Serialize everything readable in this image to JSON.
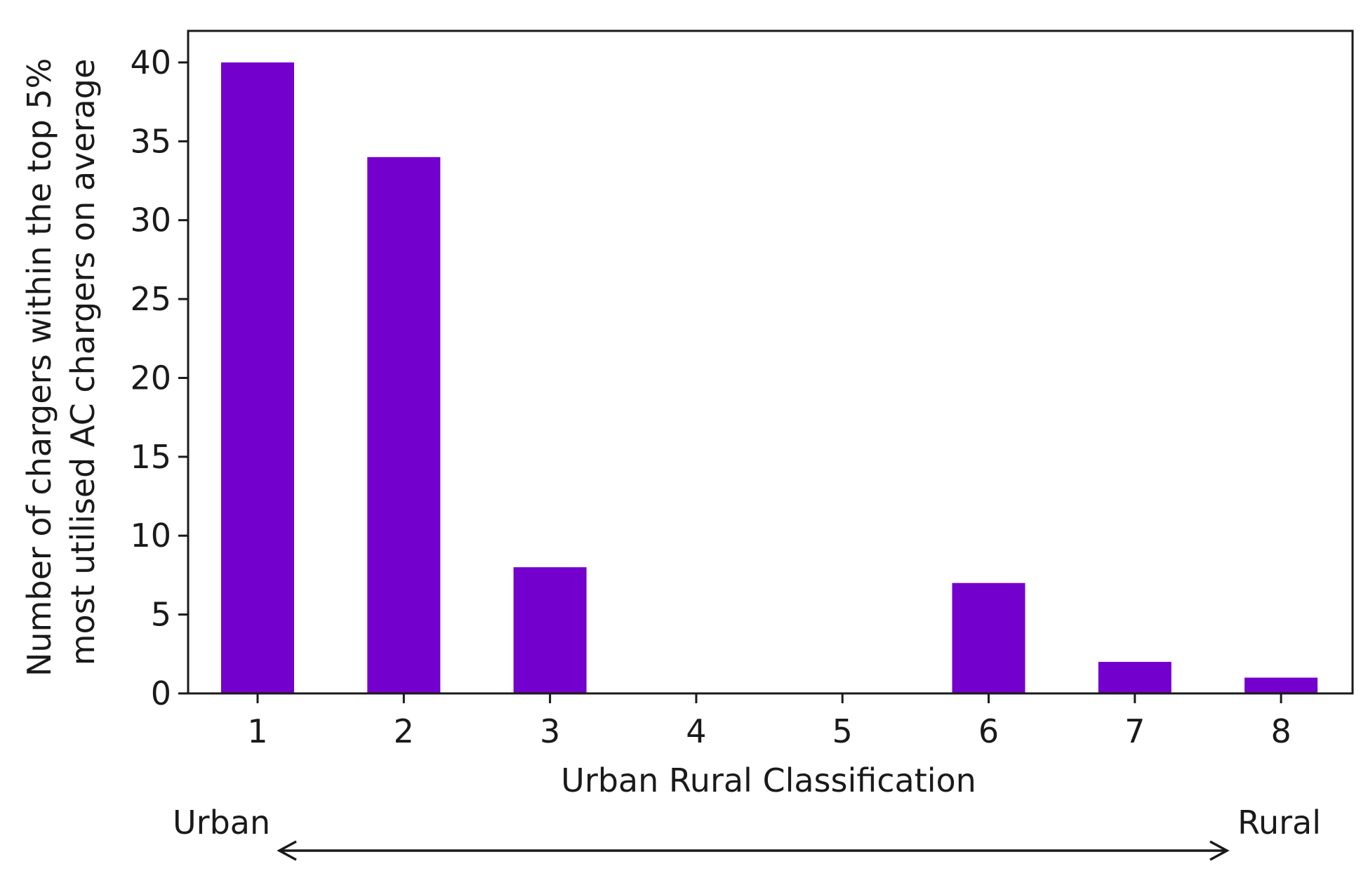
{
  "chart_data": {
    "type": "bar",
    "categories": [
      "1",
      "2",
      "3",
      "4",
      "5",
      "6",
      "7",
      "8"
    ],
    "values": [
      40,
      34,
      8,
      0,
      0,
      7,
      2,
      1
    ],
    "title": "",
    "xlabel": "Urban Rural Classification",
    "ylabel_lines": [
      "Number of chargers within the top 5%",
      "most utilised AC chargers on average"
    ],
    "ylim": [
      0,
      42
    ],
    "yticks": [
      0,
      5,
      10,
      15,
      20,
      25,
      30,
      35,
      40
    ],
    "grid": false,
    "bar_color": "#7300cc",
    "annotations": {
      "left": "Urban",
      "right": "Rural",
      "arrow": "double-headed"
    }
  }
}
